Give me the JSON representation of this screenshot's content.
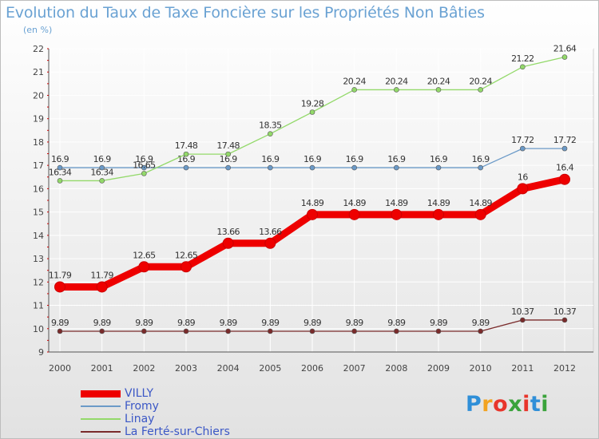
{
  "title": "Evolution du Taux de Taxe Foncière sur les Propriétés Non Bâties",
  "unit_label": "(en %)",
  "logo": {
    "letters": [
      "P",
      "r",
      "o",
      "x",
      "i",
      "t",
      "i"
    ],
    "colors": [
      "#2f8fd8",
      "#f2a321",
      "#e8352b",
      "#3aa33b",
      "#e8352b",
      "#2f8fd8",
      "#3aa33b"
    ]
  },
  "chart_data": {
    "type": "line",
    "title": "Evolution du Taux de Taxe Foncière sur les Propriétés Non Bâties",
    "ylabel": "(en %)",
    "x": [
      "2000",
      "2001",
      "2002",
      "2003",
      "2004",
      "2005",
      "2006",
      "2007",
      "2008",
      "2009",
      "2010",
      "2011",
      "2012"
    ],
    "ylim": [
      9,
      22
    ],
    "yticks": [
      9,
      10,
      11,
      12,
      13,
      14,
      15,
      16,
      17,
      18,
      19,
      20,
      21,
      22
    ],
    "grid": true,
    "legend_position": "bottom-left",
    "series": [
      {
        "name": "VILLY",
        "color": "#ee0000",
        "emphasis": true,
        "values": [
          11.79,
          11.79,
          12.65,
          12.65,
          13.66,
          13.66,
          14.89,
          14.89,
          14.89,
          14.89,
          14.89,
          16,
          16.4
        ],
        "labels": [
          "11.79",
          "11.79",
          "12.65",
          "12.65",
          "13.66",
          "13.66",
          "14.89",
          "14.89",
          "14.89",
          "14.89",
          "14.89",
          "16",
          "16.4"
        ]
      },
      {
        "name": "Fromy",
        "color": "#6b9ac8",
        "values": [
          16.9,
          16.9,
          16.9,
          16.9,
          16.9,
          16.9,
          16.9,
          16.9,
          16.9,
          16.9,
          16.9,
          17.72,
          17.72
        ],
        "labels": [
          "16.9",
          "16.9",
          "16.9",
          "16.9",
          "16.9",
          "16.9",
          "16.9",
          "16.9",
          "16.9",
          "16.9",
          "16.9",
          "17.72",
          "17.72"
        ]
      },
      {
        "name": "Linay",
        "color": "#93d96a",
        "values": [
          16.34,
          16.34,
          16.65,
          17.48,
          17.48,
          18.35,
          19.28,
          20.24,
          20.24,
          20.24,
          20.24,
          21.22,
          21.64
        ],
        "labels": [
          "16.34",
          "16.34",
          "16.65",
          "17.48",
          "17.48",
          "18.35",
          "19.28",
          "20.24",
          "20.24",
          "20.24",
          "20.24",
          "21.22",
          "21.64"
        ]
      },
      {
        "name": "La Ferté-sur-Chiers",
        "color": "#7a2b2b",
        "values": [
          9.89,
          9.89,
          9.89,
          9.89,
          9.89,
          9.89,
          9.89,
          9.89,
          9.89,
          9.89,
          9.89,
          10.37,
          10.37
        ],
        "labels": [
          "9.89",
          "9.89",
          "9.89",
          "9.89",
          "9.89",
          "9.89",
          "9.89",
          "9.89",
          "9.89",
          "9.89",
          "9.89",
          "10.37",
          "10.37"
        ]
      }
    ]
  }
}
